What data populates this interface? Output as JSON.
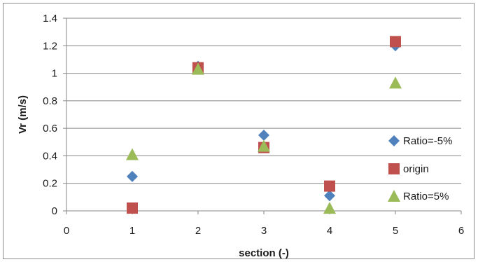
{
  "chart_data": {
    "type": "scatter",
    "title": "",
    "xlabel": "section (-)",
    "ylabel": "Vr (m/s)",
    "xlim": [
      0,
      6
    ],
    "ylim": [
      0,
      1.4
    ],
    "x_ticks": [
      "0",
      "1",
      "2",
      "3",
      "4",
      "5",
      "6"
    ],
    "y_ticks": [
      "0",
      "0.2",
      "0.4",
      "0.6",
      "0.8",
      "1",
      "1.2",
      "1.4"
    ],
    "grid": "horizontal",
    "legend_position": "right",
    "series": [
      {
        "name": "Ratio=-5%",
        "marker": "diamond",
        "color": "#4f81bd",
        "x": [
          1,
          2,
          3,
          4,
          5
        ],
        "y": [
          0.25,
          1.05,
          0.55,
          0.11,
          1.2
        ]
      },
      {
        "name": "origin",
        "marker": "square",
        "color": "#c0504d",
        "x": [
          1,
          2,
          3,
          4,
          5
        ],
        "y": [
          0.02,
          1.04,
          0.46,
          0.18,
          1.23
        ]
      },
      {
        "name": "Ratio=5%",
        "marker": "triangle",
        "color": "#9bbb59",
        "x": [
          1,
          2,
          3,
          4,
          5
        ],
        "y": [
          0.41,
          1.03,
          0.47,
          0.02,
          0.93
        ]
      }
    ]
  }
}
